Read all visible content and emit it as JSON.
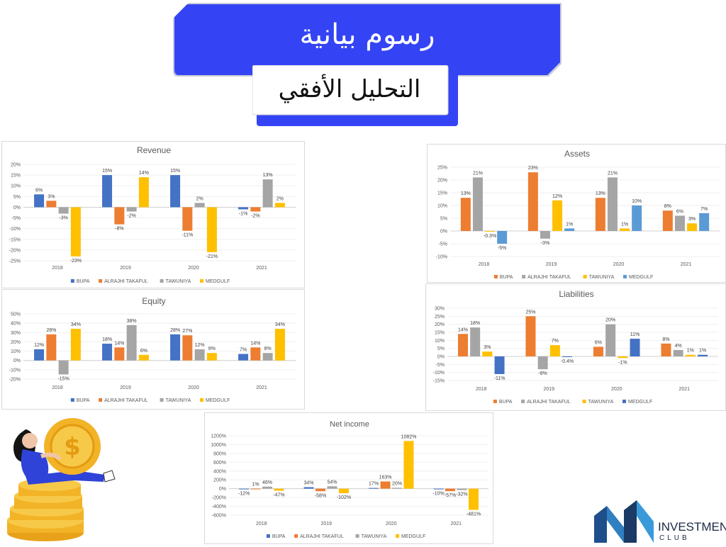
{
  "header": {
    "title": "رسوم بيانية",
    "subtitle": "التحليل الأفقي"
  },
  "colors": {
    "banner_blue": "#3444f5",
    "bupa": "#4472c4",
    "alrajhi": "#ed7d31",
    "tawuniya": "#a5a5a5",
    "medgulf": "#ffc000",
    "medgulf_blue": "#5b9bd5"
  },
  "chart_data": [
    {
      "id": "revenue",
      "type": "bar",
      "title": "Revenue",
      "categories": [
        "2018",
        "2019",
        "2020",
        "2021"
      ],
      "series": [
        {
          "name": "BUPA",
          "color": "#4472c4",
          "values": [
            6,
            15,
            15,
            -1
          ],
          "labels": [
            "6%",
            "15%",
            "15%",
            "-1%"
          ]
        },
        {
          "name": "ALRAJHI TAKAFUL",
          "color": "#ed7d31",
          "values": [
            3,
            -8,
            -11,
            -2
          ],
          "labels": [
            "3%",
            "-8%",
            "-11%",
            "-2%"
          ]
        },
        {
          "name": "TAWUNIYA",
          "color": "#a5a5a5",
          "values": [
            -3,
            -2,
            2,
            13
          ],
          "labels": [
            "-3%",
            "-2%",
            "2%",
            "13%"
          ]
        },
        {
          "name": "MEDGULF",
          "color": "#ffc000",
          "values": [
            -23,
            14,
            -21,
            2
          ],
          "labels": [
            "-23%",
            "14%",
            "-21%",
            "2%"
          ]
        }
      ],
      "yticks": [
        "20%",
        "15%",
        "10%",
        "5%",
        "0%",
        "-5%",
        "-10%",
        "-15%",
        "-20%",
        "-25%"
      ],
      "ylim": [
        -25,
        20
      ],
      "legend": "bottom"
    },
    {
      "id": "assets",
      "type": "bar",
      "title": "Assets",
      "categories": [
        "2018",
        "2019",
        "2020",
        "2021"
      ],
      "series": [
        {
          "name": "BUPA",
          "color": "#ed7d31",
          "values": [
            13,
            23,
            13,
            8
          ],
          "labels": [
            "13%",
            "23%",
            "13%",
            "8%"
          ]
        },
        {
          "name": "ALRAJHI TAKAFUL",
          "color": "#a5a5a5",
          "values": [
            21,
            -3,
            21,
            6
          ],
          "labels": [
            "21%",
            "-3%",
            "21%",
            "6%"
          ]
        },
        {
          "name": "TAWUNIYA",
          "color": "#ffc000",
          "values": [
            -0.3,
            12,
            1,
            3
          ],
          "labels": [
            "-0.3%",
            "12%",
            "1%",
            "3%"
          ]
        },
        {
          "name": "MEDGULF",
          "color": "#5b9bd5",
          "values": [
            -5,
            1,
            10,
            7
          ],
          "labels": [
            "-5%",
            "1%",
            "10%",
            "7%"
          ]
        }
      ],
      "yticks": [
        "25%",
        "20%",
        "15%",
        "10%",
        "5%",
        "0%",
        "-5%",
        "-10%"
      ],
      "ylim": [
        -10,
        25
      ],
      "legend": "bottom"
    },
    {
      "id": "equity",
      "type": "bar",
      "title": "Equity",
      "categories": [
        "2018",
        "2019",
        "2020",
        "2021"
      ],
      "series": [
        {
          "name": "BUPA",
          "color": "#4472c4",
          "values": [
            12,
            18,
            28,
            7
          ],
          "labels": [
            "12%",
            "18%",
            "28%",
            "7%"
          ]
        },
        {
          "name": "ALRAJHI TAKAFUL",
          "color": "#ed7d31",
          "values": [
            28,
            14,
            27,
            14
          ],
          "labels": [
            "28%",
            "14%",
            "27%",
            "14%"
          ]
        },
        {
          "name": "TAWUNIYA",
          "color": "#a5a5a5",
          "values": [
            -15,
            38,
            12,
            8
          ],
          "labels": [
            "-15%",
            "38%",
            "12%",
            "8%"
          ]
        },
        {
          "name": "MEDGULF",
          "color": "#ffc000",
          "values": [
            34,
            6,
            8,
            34
          ],
          "labels": [
            "34%",
            "6%",
            "8%",
            "34%"
          ]
        }
      ],
      "yticks": [
        "50%",
        "40%",
        "30%",
        "20%",
        "10%",
        "0%",
        "-10%",
        "-20%"
      ],
      "ylim": [
        -20,
        50
      ],
      "legend": "bottom"
    },
    {
      "id": "liabilities",
      "type": "bar",
      "title": "Liabilities",
      "categories": [
        "2018",
        "2019",
        "2020",
        "2021"
      ],
      "series": [
        {
          "name": "BUPA",
          "color": "#ed7d31",
          "values": [
            14,
            25,
            6,
            8
          ],
          "labels": [
            "14%",
            "25%",
            "6%",
            "8%"
          ]
        },
        {
          "name": "ALRAJHI TAKAFUL",
          "color": "#a5a5a5",
          "values": [
            18,
            -8,
            20,
            4
          ],
          "labels": [
            "18%",
            "-8%",
            "20%",
            "4%"
          ]
        },
        {
          "name": "TAWUNIYA",
          "color": "#ffc000",
          "values": [
            3,
            7,
            -1,
            1
          ],
          "labels": [
            "3%",
            "7%",
            "-1%",
            "1%"
          ]
        },
        {
          "name": "MEDGULF",
          "color": "#4472c4",
          "values": [
            -11,
            -0.4,
            11,
            1
          ],
          "labels": [
            "-11%",
            "-0.4%",
            "11%",
            "1%"
          ]
        }
      ],
      "yticks": [
        "30%",
        "25%",
        "20%",
        "15%",
        "10%",
        "5%",
        "0%",
        "-5%",
        "-10%",
        "-15%"
      ],
      "ylim": [
        -15,
        30
      ],
      "legend": "bottom"
    },
    {
      "id": "netincome",
      "type": "bar",
      "title": "Net income",
      "categories": [
        "2018",
        "2019",
        "2020",
        "2021"
      ],
      "series": [
        {
          "name": "BUPA",
          "color": "#4472c4",
          "values": [
            -12,
            34,
            17,
            -10
          ],
          "labels": [
            "-12%",
            "34%",
            "17%",
            "-10%"
          ]
        },
        {
          "name": "ALRAJHI TAKAFUL",
          "color": "#ed7d31",
          "values": [
            1,
            -58,
            163,
            -57
          ],
          "labels": [
            "1%",
            "-58%",
            "163%",
            "-57%"
          ]
        },
        {
          "name": "TAWUNIYA",
          "color": "#a5a5a5",
          "values": [
            46,
            54,
            20,
            -32
          ],
          "labels": [
            "46%",
            "54%",
            "20%",
            "-32%"
          ]
        },
        {
          "name": "MEDGULF",
          "color": "#ffc000",
          "values": [
            -47,
            -102,
            1082,
            -481
          ],
          "labels": [
            "-47%",
            "-102%",
            "1082%",
            "-481%"
          ]
        }
      ],
      "yticks": [
        "1200%",
        "1000%",
        "800%",
        "600%",
        "400%",
        "200%",
        "0%",
        "-200%",
        "-400%",
        "-600%"
      ],
      "ylim": [
        -600,
        1200
      ],
      "legend": "bottom"
    }
  ],
  "logo": {
    "name": "INVESTMENT",
    "sub": "CLUB"
  }
}
